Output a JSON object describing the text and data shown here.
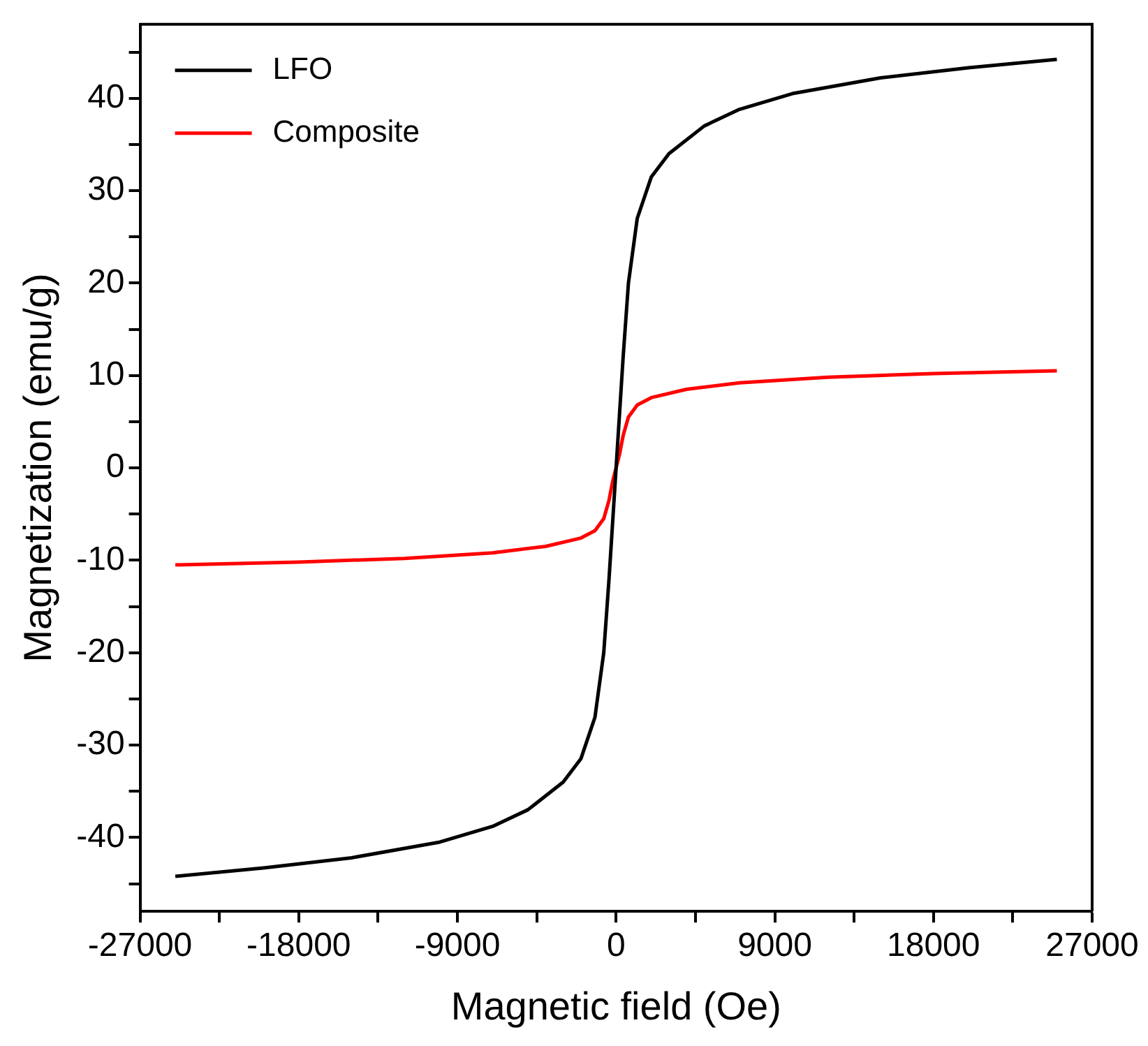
{
  "chart_data": {
    "type": "line",
    "xlabel": "Magnetic field (Oe)",
    "ylabel": "Magnetization (emu/g)",
    "xlim": [
      -27000,
      27000
    ],
    "ylim": [
      -48,
      48
    ],
    "xticks": [
      -27000,
      {
        "value": -22500,
        "label": null
      },
      -18000,
      {
        "value": -13500,
        "label": null
      },
      -9000,
      {
        "value": -4500,
        "label": null
      },
      0,
      {
        "value": 4500,
        "label": null
      },
      9000,
      {
        "value": 13500,
        "label": null
      },
      18000,
      {
        "value": 22500,
        "label": null
      },
      27000
    ],
    "yticks": [
      {
        "value": -45,
        "label": null
      },
      -40,
      {
        "value": -35,
        "label": null
      },
      -30,
      {
        "value": -25,
        "label": null
      },
      -20,
      {
        "value": -15,
        "label": null
      },
      -10,
      {
        "value": -5,
        "label": null
      },
      0,
      {
        "value": 5,
        "label": null
      },
      10,
      {
        "value": 15,
        "label": null
      },
      20,
      {
        "value": 25,
        "label": null
      },
      30,
      {
        "value": 35,
        "label": null
      },
      40,
      {
        "value": 45,
        "label": null
      }
    ],
    "grid": false,
    "legend": "top left",
    "marker": "none",
    "line_style": "solid",
    "series": [
      {
        "name": "LFO",
        "color": "#000000",
        "x": [
          -25000,
          -20000,
          -15000,
          -10000,
          -7000,
          -5000,
          -3000,
          -2000,
          -1200,
          -700,
          -400,
          -200,
          0,
          200,
          400,
          700,
          1200,
          2000,
          3000,
          5000,
          7000,
          10000,
          15000,
          20000,
          25000
        ],
        "values": [
          -44.2,
          -43.3,
          -42.2,
          -40.5,
          -38.8,
          -37,
          -34,
          -31.5,
          -27,
          -20,
          -12,
          -6,
          0,
          6,
          12,
          20,
          27,
          31.5,
          34,
          37,
          38.8,
          40.5,
          42.2,
          43.3,
          44.2
        ]
      },
      {
        "name": "Composite",
        "color": "#ff0000",
        "x": [
          -25000,
          -18000,
          -12000,
          -7000,
          -4000,
          -2000,
          -1200,
          -700,
          -400,
          -200,
          0,
          200,
          400,
          700,
          1200,
          2000,
          4000,
          7000,
          12000,
          18000,
          25000
        ],
        "values": [
          -10.5,
          -10.2,
          -9.8,
          -9.2,
          -8.5,
          -7.6,
          -6.8,
          -5.5,
          -3.5,
          -1.5,
          0,
          1.5,
          3.5,
          5.5,
          6.8,
          7.6,
          8.5,
          9.2,
          9.8,
          10.2,
          10.5
        ]
      }
    ]
  }
}
